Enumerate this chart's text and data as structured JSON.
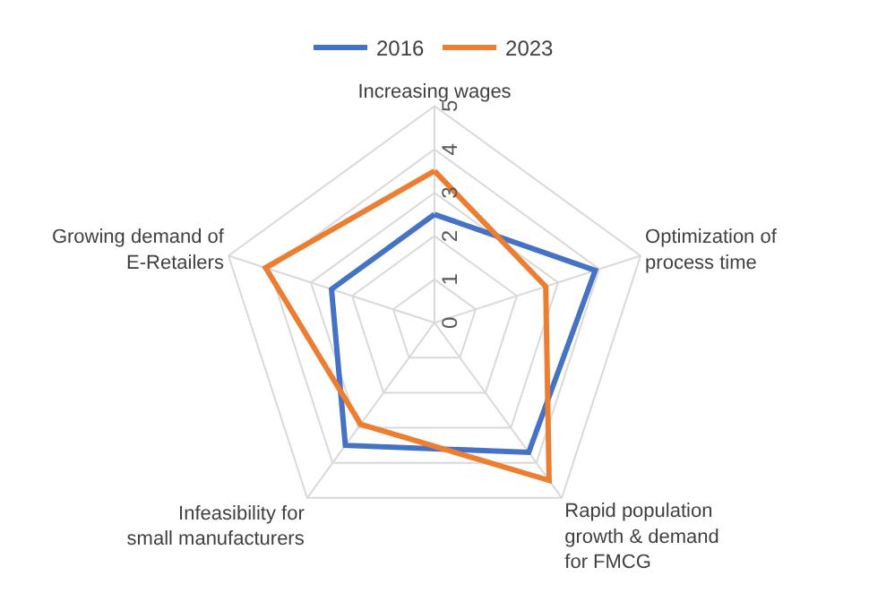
{
  "chart_data": {
    "type": "radar",
    "categories": [
      "Increasing wages",
      "Optimization of process time",
      "Rapid population growth & demand for FMCG",
      "Infeasibility for small manufacturers",
      "Growing demand of E-Retailers"
    ],
    "series": [
      {
        "name": "2016",
        "color": "#4472c4",
        "values": [
          2.5,
          3.9,
          3.7,
          3.5,
          2.5
        ]
      },
      {
        "name": "2023",
        "color": "#ed7d31",
        "values": [
          3.5,
          2.7,
          4.5,
          2.9,
          4.1
        ]
      }
    ],
    "ylim": [
      0,
      5
    ],
    "yticks": [
      0,
      1,
      2,
      3,
      4,
      5
    ],
    "grid": true,
    "legend": "top",
    "marker": "none",
    "line_style": "solid"
  }
}
